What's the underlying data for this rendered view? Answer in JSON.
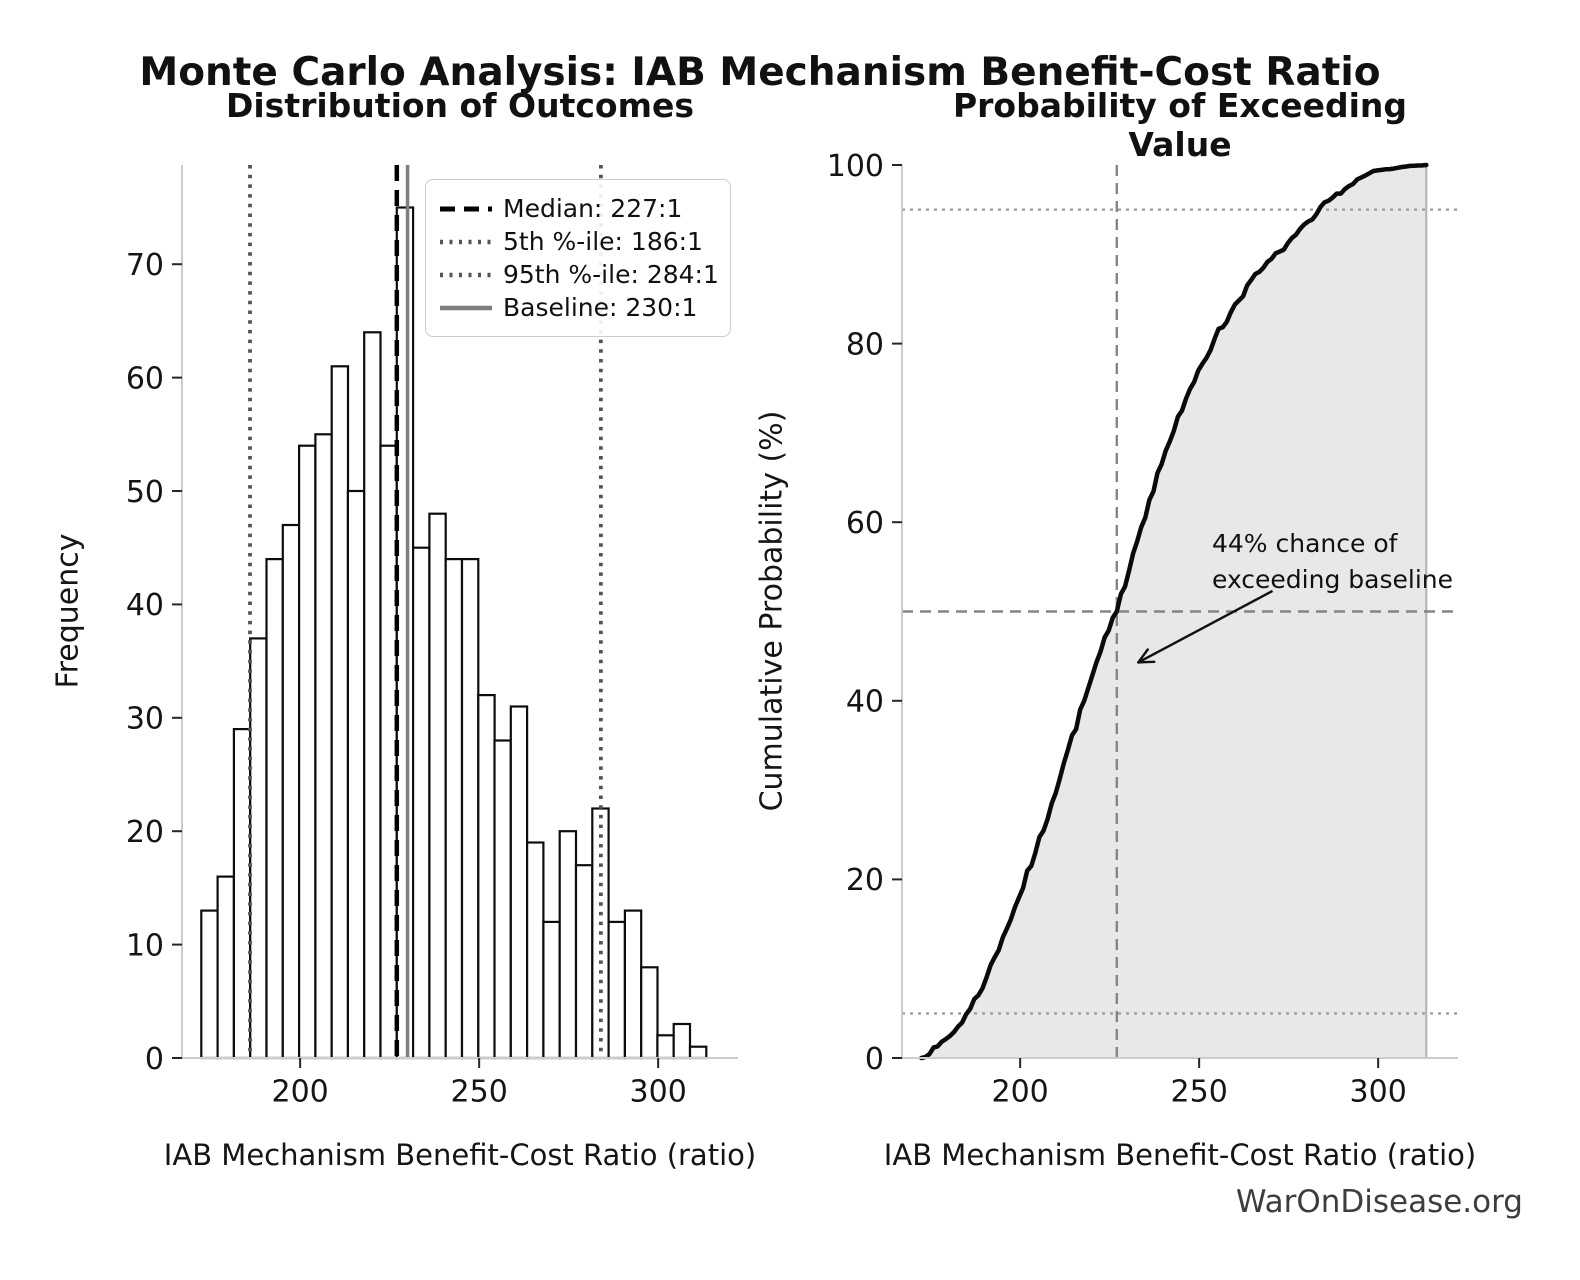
{
  "figure": {
    "title": "Monte Carlo Analysis: IAB Mechanism Benefit-Cost Ratio",
    "watermark": "WarOnDisease.org",
    "colors": {
      "bar_fill": "#ffffff",
      "bar_edge": "#0d0d0d",
      "spine": "#cccccc",
      "tick": "#262626",
      "tick_label": "#151515",
      "median_line": "#000000",
      "percentile_line": "#545454",
      "baseline_line": "#7f7f7f",
      "cdf_line": "#0a0a0a",
      "cdf_fill": "#e8e8e8",
      "cdf_fill_edge": "#b0b0b0",
      "dotted_hline": "#999999",
      "dashed_gray": "#858585",
      "arrow": "#111111"
    }
  },
  "chart_data": [
    {
      "type": "bar",
      "title": "Distribution of Outcomes",
      "xlabel": "IAB Mechanism Benefit-Cost Ratio (ratio)",
      "ylabel": "Frequency",
      "bin_start": 172.4,
      "bin_width": 4.55,
      "counts": [
        13,
        16,
        29,
        37,
        44,
        47,
        54,
        55,
        61,
        50,
        64,
        54,
        75,
        45,
        48,
        44,
        44,
        32,
        28,
        31,
        19,
        12,
        20,
        17,
        22,
        12,
        13,
        8,
        2,
        3,
        1
      ],
      "n_samples": 1000,
      "xlim": [
        167.0,
        322.3
      ],
      "ylim": [
        0,
        78.75
      ],
      "xticks": [
        200,
        250,
        300
      ],
      "yticks": [
        0,
        10,
        20,
        30,
        40,
        50,
        60,
        70
      ],
      "ref_lines": [
        {
          "id": "median",
          "x": 227,
          "style": "dashed",
          "label": "Median: 227:1"
        },
        {
          "id": "p5",
          "x": 186,
          "style": "dotted",
          "label": "5th %-ile: 186:1"
        },
        {
          "id": "p95",
          "x": 284,
          "style": "dotted",
          "label": "95th %-ile: 284:1"
        },
        {
          "id": "baseline",
          "x": 230,
          "style": "solid",
          "label": "Baseline: 230:1"
        }
      ]
    },
    {
      "type": "line",
      "title": "Probability of Exceeding Value",
      "xlabel": "IAB Mechanism Benefit-Cost Ratio (ratio)",
      "ylabel": "Cumulative Probability (%)",
      "x": [
        172.4,
        176.95,
        181.5,
        186.05,
        190.6,
        195.15,
        199.7,
        204.25,
        208.8,
        213.35,
        217.9,
        222.45,
        227.0,
        231.55,
        236.1,
        240.65,
        245.2,
        249.75,
        254.3,
        258.85,
        263.4,
        267.95,
        272.5,
        277.05,
        281.6,
        286.15,
        290.7,
        295.25,
        299.8,
        304.35,
        308.9,
        313.45
      ],
      "y": [
        0,
        1.3,
        2.9,
        5.5,
        9.0,
        13.5,
        18.0,
        23.0,
        28.5,
        34.5,
        40.0,
        45.5,
        50.0,
        56.5,
        62.5,
        68.0,
        72.5,
        77.0,
        80.5,
        83.5,
        86.5,
        88.5,
        90.3,
        92.2,
        93.9,
        96.0,
        97.3,
        98.6,
        99.4,
        99.6,
        99.9,
        100.0
      ],
      "xlim": [
        167.0,
        322.3
      ],
      "ylim": [
        0,
        100
      ],
      "xticks": [
        200,
        250,
        300
      ],
      "yticks": [
        0,
        20,
        40,
        60,
        80,
        100
      ],
      "hlines": [
        {
          "y": 5,
          "style": "dotted"
        },
        {
          "y": 50,
          "style": "dashed"
        },
        {
          "y": 95,
          "style": "dotted"
        }
      ],
      "vlines": [
        {
          "x": 227,
          "style": "dashed"
        }
      ],
      "annotation": {
        "line1": "44% chance of",
        "line2": "exceeding baseline",
        "arrow_from": [
          270.5,
          52.3
        ],
        "arrow_to": [
          233.0,
          44.3
        ]
      }
    }
  ]
}
